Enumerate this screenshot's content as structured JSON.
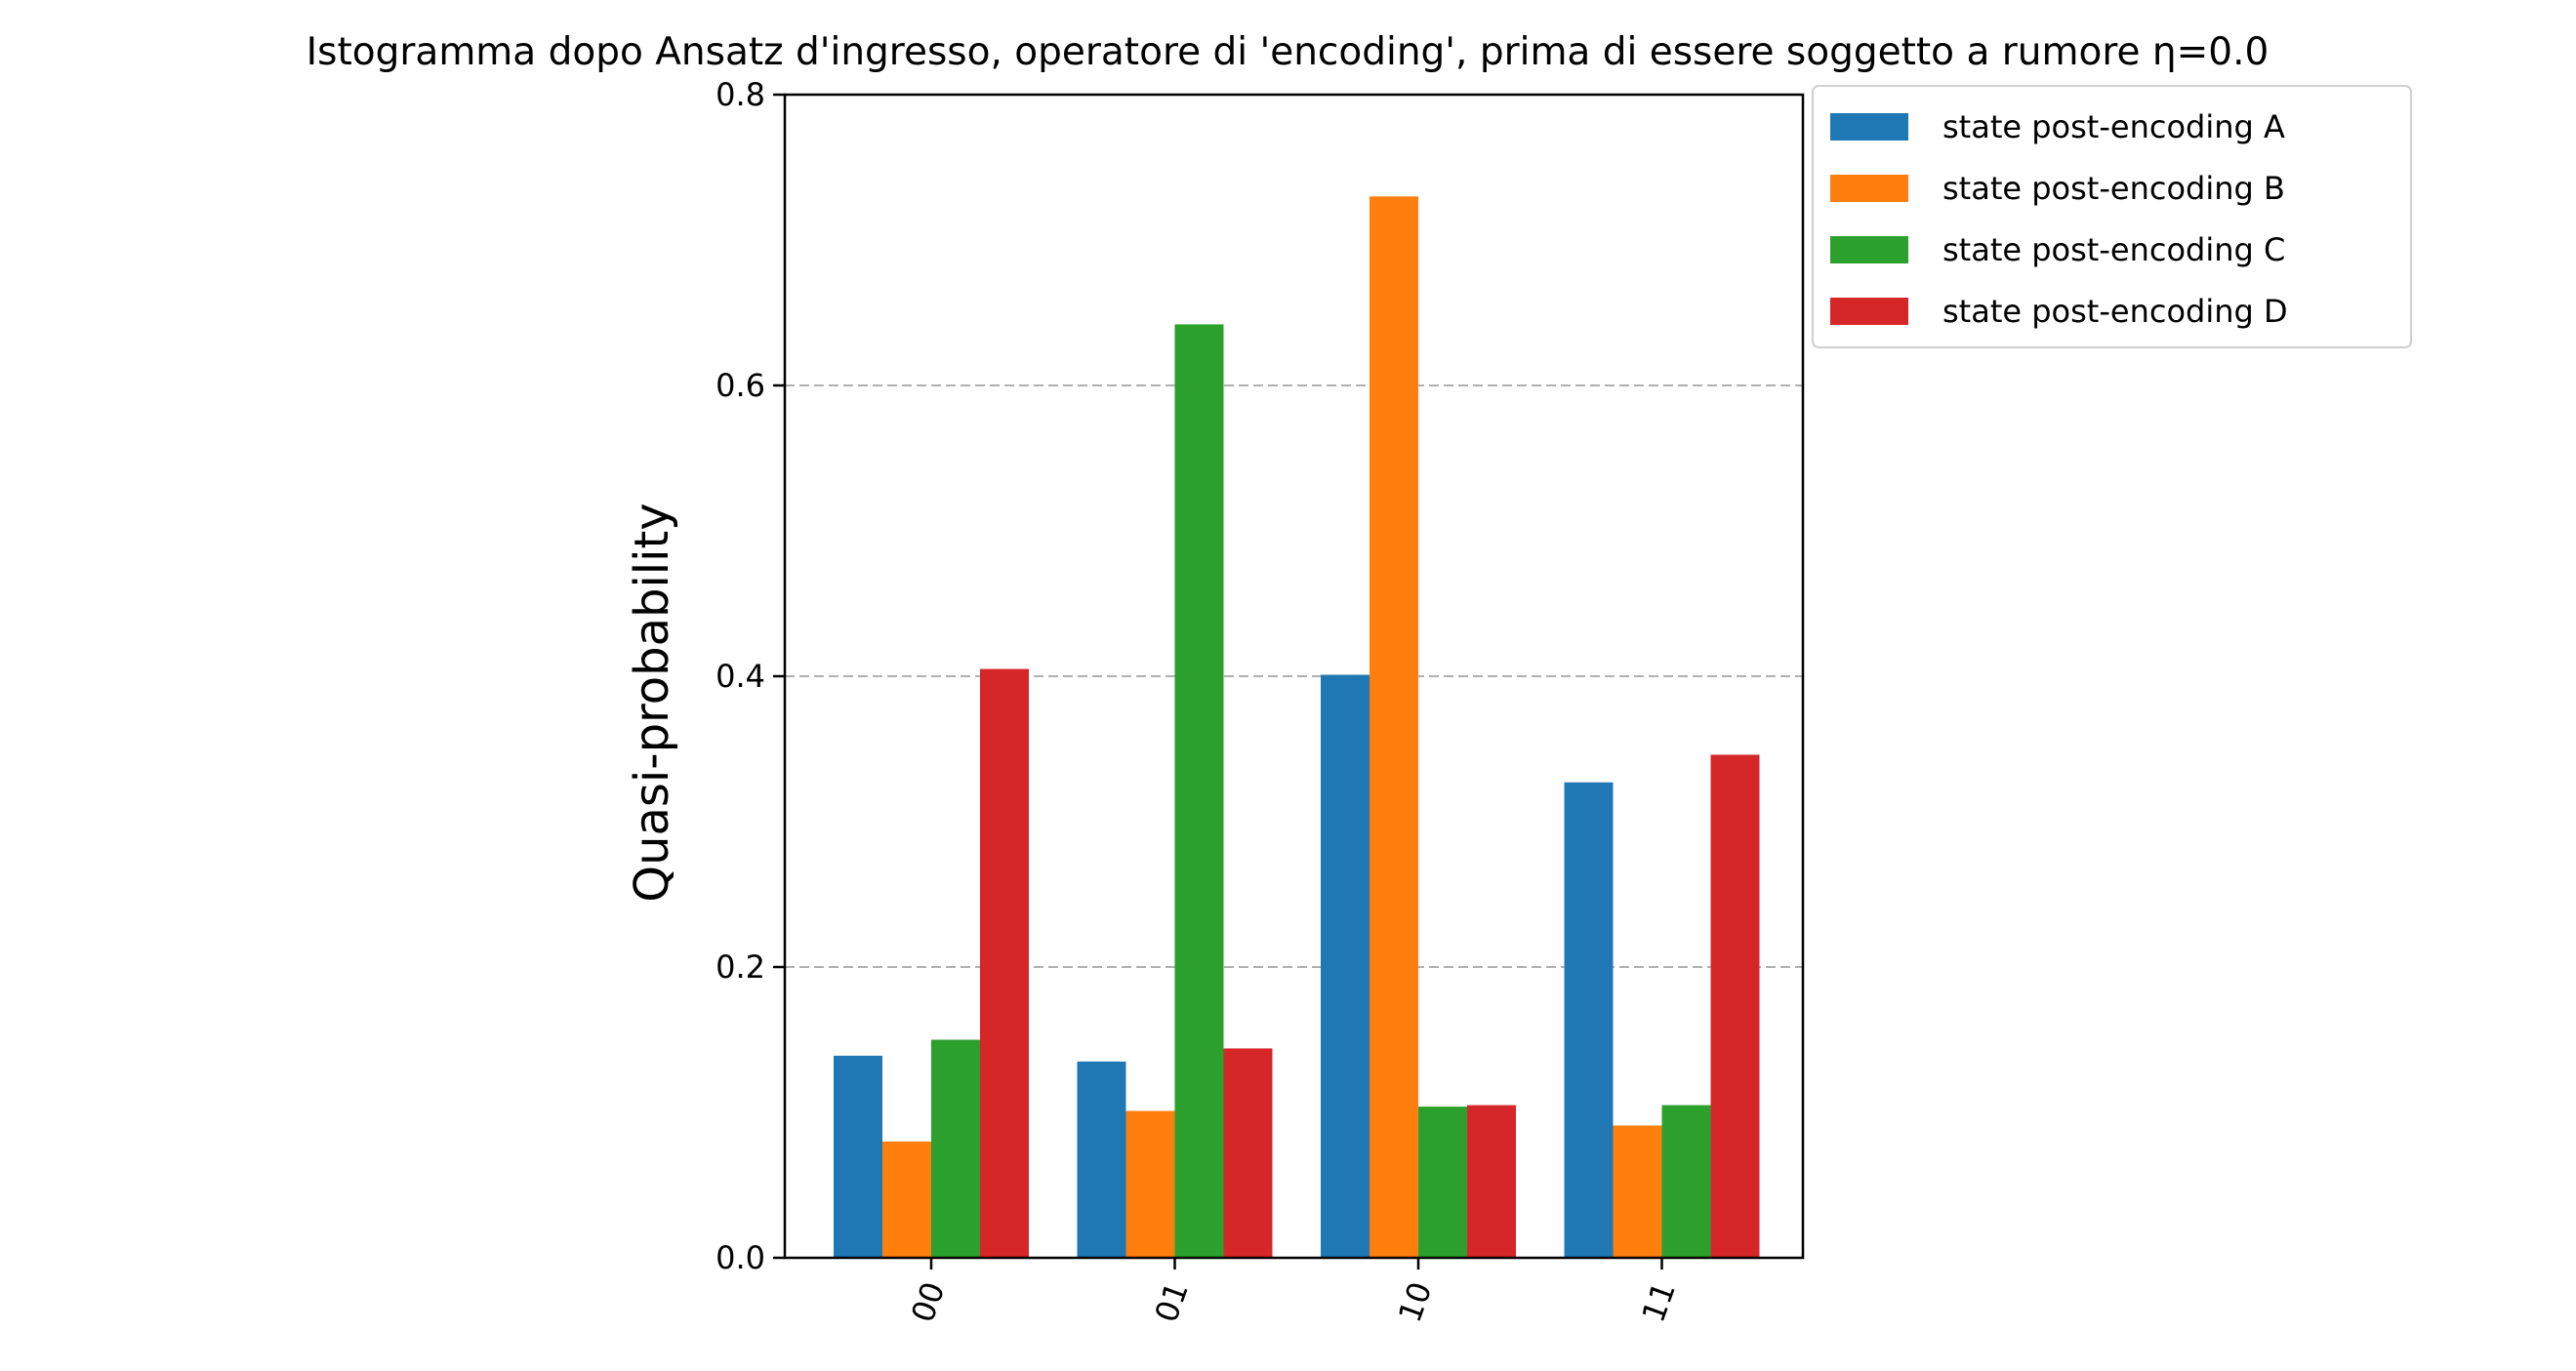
{
  "chart_data": {
    "type": "bar",
    "title": "Istogramma dopo Ansatz d'ingresso, operatore di 'encoding', prima di essere soggetto a rumore η=0.0",
    "xlabel": "",
    "ylabel": "Quasi-probability",
    "categories": [
      "00",
      "01",
      "10",
      "11"
    ],
    "ylim": [
      0,
      0.8
    ],
    "yticks": [
      "0.0",
      "0.2",
      "0.4",
      "0.6",
      "0.8"
    ],
    "grid": "horizontal dashed",
    "legend_position": "outside top-right",
    "series": [
      {
        "name": "state post-encoding A",
        "color": "#1f77b4",
        "values": [
          0.139,
          0.135,
          0.401,
          0.327
        ]
      },
      {
        "name": "state post-encoding B",
        "color": "#ff7f0e",
        "values": [
          0.08,
          0.101,
          0.73,
          0.091
        ]
      },
      {
        "name": "state post-encoding C",
        "color": "#2ca02c",
        "values": [
          0.15,
          0.642,
          0.104,
          0.105
        ]
      },
      {
        "name": "state post-encoding D",
        "color": "#d62728",
        "values": [
          0.405,
          0.144,
          0.105,
          0.346
        ]
      }
    ]
  }
}
